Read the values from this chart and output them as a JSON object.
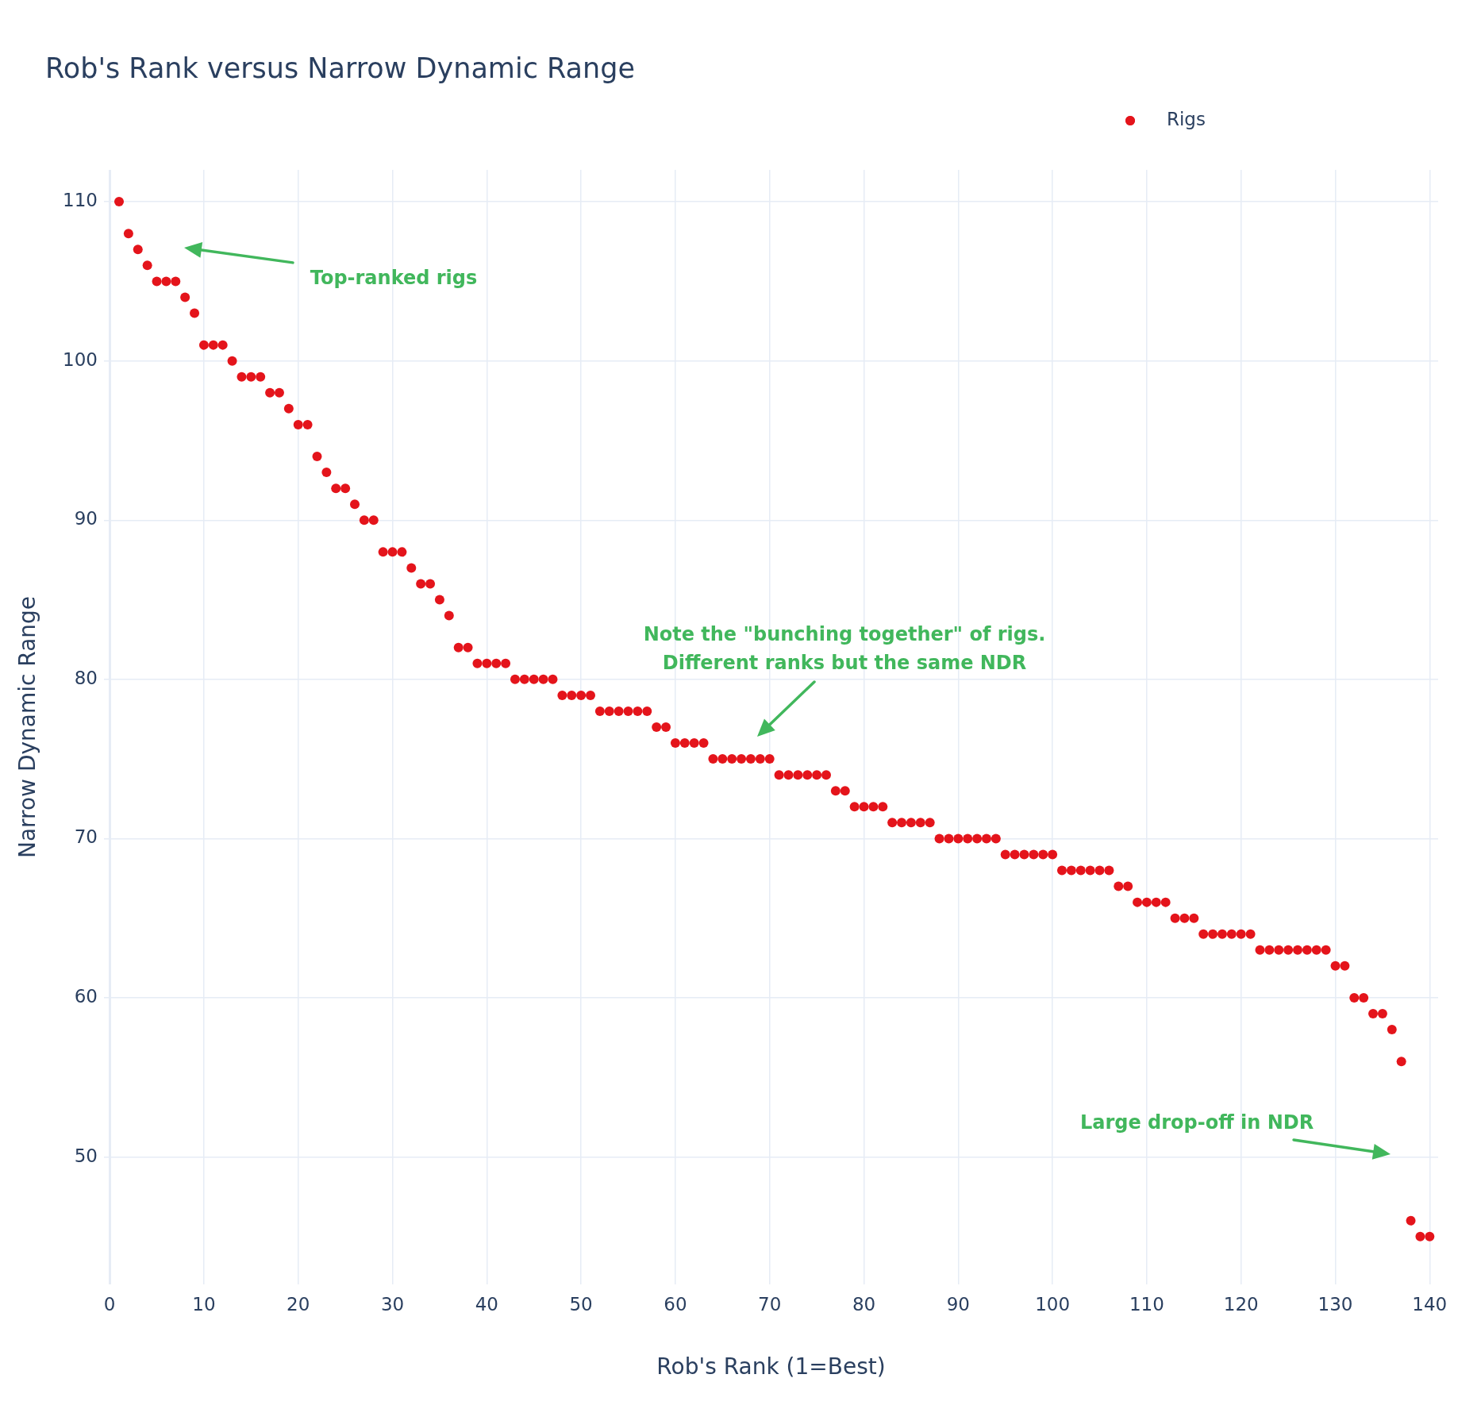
{
  "chart_data": {
    "type": "scatter",
    "title": "Rob's Rank versus Narrow Dynamic Range",
    "xlabel": "Rob's Rank (1=Best)",
    "ylabel": "Narrow Dynamic Range",
    "x": [
      1,
      2,
      3,
      4,
      5,
      6,
      7,
      8,
      9,
      10,
      11,
      12,
      13,
      14,
      15,
      16,
      17,
      18,
      19,
      20,
      21,
      22,
      23,
      24,
      25,
      26,
      27,
      28,
      29,
      30,
      31,
      32,
      33,
      34,
      35,
      36,
      37,
      38,
      39,
      40,
      41,
      42,
      43,
      44,
      45,
      46,
      47,
      48,
      49,
      50,
      51,
      52,
      53,
      54,
      55,
      56,
      57,
      58,
      59,
      60,
      61,
      62,
      63,
      64,
      65,
      66,
      67,
      68,
      69,
      70,
      71,
      72,
      73,
      74,
      75,
      76,
      77,
      78,
      79,
      80,
      81,
      82,
      83,
      84,
      85,
      86,
      87,
      88,
      89,
      90,
      91,
      92,
      93,
      94,
      95,
      96,
      97,
      98,
      99,
      100,
      101,
      102,
      103,
      104,
      105,
      106,
      107,
      108,
      109,
      110,
      111,
      112,
      113,
      114,
      115,
      116,
      117,
      118,
      119,
      120,
      121,
      122,
      123,
      124,
      125,
      126,
      127,
      128,
      129,
      130,
      131,
      132,
      133,
      134,
      135,
      136,
      137,
      138,
      139,
      140
    ],
    "series": [
      {
        "name": "Rigs",
        "color": "#e4141b",
        "values": [
          110,
          108,
          107,
          106,
          105,
          105,
          105,
          104,
          103,
          101,
          101,
          101,
          100,
          99,
          99,
          99,
          98,
          98,
          97,
          96,
          96,
          94,
          93,
          92,
          92,
          91,
          90,
          90,
          88,
          88,
          88,
          87,
          86,
          86,
          85,
          84,
          82,
          82,
          81,
          81,
          81,
          81,
          80,
          80,
          80,
          80,
          80,
          79,
          79,
          79,
          79,
          78,
          78,
          78,
          78,
          78,
          78,
          77,
          77,
          76,
          76,
          76,
          76,
          75,
          75,
          75,
          75,
          75,
          75,
          75,
          74,
          74,
          74,
          74,
          74,
          74,
          73,
          73,
          72,
          72,
          72,
          72,
          71,
          71,
          71,
          71,
          71,
          70,
          70,
          70,
          70,
          70,
          70,
          70,
          69,
          69,
          69,
          69,
          69,
          69,
          68,
          68,
          68,
          68,
          68,
          68,
          67,
          67,
          66,
          66,
          66,
          66,
          65,
          65,
          65,
          64,
          64,
          64,
          64,
          64,
          64,
          63,
          63,
          63,
          63,
          63,
          63,
          63,
          63,
          62,
          62,
          60,
          60,
          59,
          59,
          58,
          56,
          46,
          45,
          45
        ]
      }
    ],
    "xlim": [
      -0.6,
      140.9
    ],
    "ylim": [
      42,
      112
    ],
    "xticks": [
      0,
      10,
      20,
      30,
      40,
      50,
      60,
      70,
      80,
      90,
      100,
      110,
      120,
      130,
      140
    ],
    "yticks": [
      50,
      60,
      70,
      80,
      90,
      100,
      110
    ],
    "grid": true,
    "legend": "top right",
    "marker": "circle",
    "annotations": [
      "Top-ranked rigs",
      "Note the \"bunching together\" of rigs.\nDifferent ranks but the same NDR",
      "Large drop-off in NDR"
    ]
  }
}
